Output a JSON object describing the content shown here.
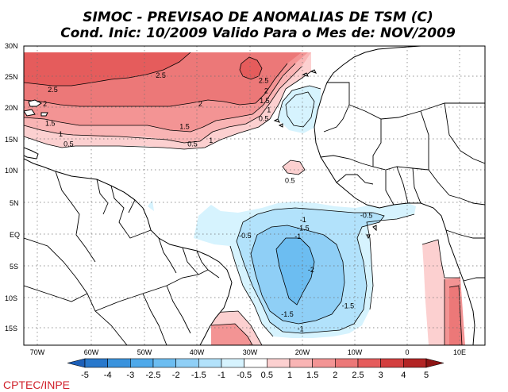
{
  "title": {
    "line1": "SIMOC - PREVISAO DE ANOMALIAS DE TSM (C)",
    "line2": "Cond. Inic: 10/2009   Valido Para o Mes de: NOV/2009"
  },
  "credit": "CPTEC/INPE",
  "map": {
    "lat_labels": [
      "30N",
      "25N",
      "20N",
      "15N",
      "10N",
      "5N",
      "EQ",
      "5S",
      "10S",
      "15S"
    ],
    "lon_labels": [
      "70W",
      "60W",
      "50W",
      "40W",
      "30W",
      "20W",
      "10W",
      "0",
      "10E"
    ],
    "grid": "dotted"
  },
  "contour_labels": [
    {
      "text": "2.5",
      "lon": -48.5,
      "lat": 25.0
    },
    {
      "text": "2.5",
      "lon": -69.0,
      "lat": 22.8
    },
    {
      "text": "2",
      "lon": -70.5,
      "lat": 20.5
    },
    {
      "text": "1.5",
      "lon": -69.5,
      "lat": 17.5
    },
    {
      "text": "1",
      "lon": -67.5,
      "lat": 15.8
    },
    {
      "text": "0.5",
      "lon": -66.0,
      "lat": 14.2
    },
    {
      "text": "2",
      "lon": -41.0,
      "lat": 20.5
    },
    {
      "text": "1.5",
      "lon": -44.0,
      "lat": 17.0
    },
    {
      "text": "1",
      "lon": -39.0,
      "lat": 14.8
    },
    {
      "text": "0.5",
      "lon": -42.5,
      "lat": 14.2
    },
    {
      "text": "2.5",
      "lon": -29.0,
      "lat": 24.2
    },
    {
      "text": "2",
      "lon": -28.5,
      "lat": 22.6
    },
    {
      "text": "1.5",
      "lon": -28.8,
      "lat": 21.0
    },
    {
      "text": "1",
      "lon": -28.0,
      "lat": 19.6
    },
    {
      "text": "0.5",
      "lon": -29.0,
      "lat": 18.2
    },
    {
      "text": "0.5",
      "lon": -24.0,
      "lat": 8.5
    },
    {
      "text": "-0.5",
      "lon": -9.5,
      "lat": 3.0
    },
    {
      "text": "-0.5",
      "lon": -32.5,
      "lat": -0.2
    },
    {
      "text": "-1",
      "lon": -21.5,
      "lat": 2.3
    },
    {
      "text": "-1.5",
      "lon": -21.5,
      "lat": 1.0
    },
    {
      "text": "-1",
      "lon": -22.5,
      "lat": -0.3
    },
    {
      "text": "-2",
      "lon": -20.0,
      "lat": -5.5
    },
    {
      "text": "-1.5",
      "lon": -13.0,
      "lat": -11.2
    },
    {
      "text": "-1.5",
      "lon": -24.5,
      "lat": -12.5
    },
    {
      "text": "-1",
      "lon": -22.0,
      "lat": -14.8
    }
  ],
  "colorbar": {
    "labels": [
      "-5",
      "-4",
      "-3",
      "-2.5",
      "-2",
      "-1.5",
      "-1",
      "-0.5",
      "0.5",
      "1",
      "1.5",
      "2",
      "2.5",
      "3",
      "4",
      "5"
    ],
    "colors": [
      "#1c5fb8",
      "#2878cc",
      "#3a93dd",
      "#4ea9ea",
      "#6cbdf1",
      "#8fcff6",
      "#b2e2fb",
      "#d6f3fe",
      "#ffffff",
      "#fcd0d0",
      "#f9b4b4",
      "#f39494",
      "#ec7878",
      "#e55c5c",
      "#d33f3f",
      "#b32525",
      "#8c1414"
    ]
  },
  "colors": {
    "pos_0_5": "#fcd0d0",
    "pos_1": "#f9b4b4",
    "pos_1_5": "#f39494",
    "pos_2": "#ec7878",
    "pos_2_5": "#e55c5c",
    "neg_0_5": "#d6f3fe",
    "neg_1": "#b2e2fb",
    "neg_1_5": "#8fcff6",
    "neg_2": "#6cbdf1",
    "credit": "#d0202a"
  }
}
